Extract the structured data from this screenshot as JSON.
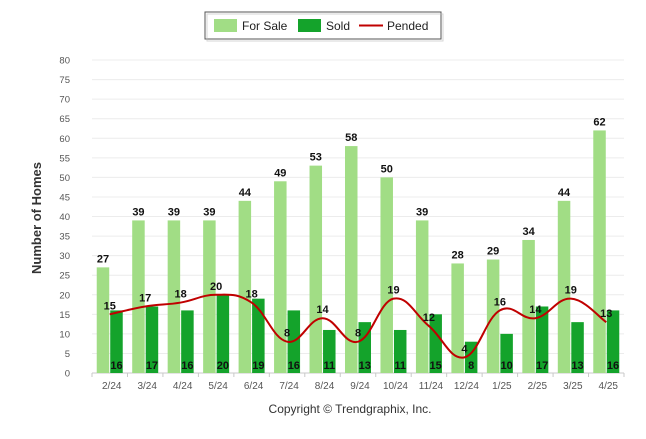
{
  "chart_data": {
    "type": "bar",
    "categories": [
      "2/24",
      "3/24",
      "4/24",
      "5/24",
      "6/24",
      "7/24",
      "8/24",
      "9/24",
      "10/24",
      "11/24",
      "12/24",
      "1/25",
      "2/25",
      "3/25",
      "4/25"
    ],
    "series": [
      {
        "name": "For Sale",
        "type": "bar",
        "color": "#a1dd85",
        "values": [
          27,
          39,
          39,
          39,
          44,
          49,
          53,
          58,
          50,
          39,
          28,
          29,
          34,
          44,
          62
        ]
      },
      {
        "name": "Sold",
        "type": "bar",
        "color": "#14a32b",
        "values": [
          16,
          17,
          16,
          20,
          19,
          16,
          11,
          13,
          11,
          15,
          8,
          10,
          17,
          13,
          16
        ]
      },
      {
        "name": "Pended",
        "type": "line",
        "color": "#c00000",
        "values": [
          15,
          17,
          18,
          20,
          18,
          8,
          14,
          8,
          19,
          12,
          4,
          16,
          14,
          19,
          13
        ]
      }
    ],
    "title": "",
    "xlabel": "",
    "ylabel": "Number of Homes",
    "ylim": [
      0,
      80
    ],
    "yticks": [
      0,
      5,
      10,
      15,
      20,
      25,
      30,
      35,
      40,
      45,
      50,
      55,
      60,
      65,
      70,
      75,
      80
    ],
    "grid": true,
    "legend": "top-center",
    "data_labels": true
  },
  "footer": {
    "copyright": "Copyright © Trendgraphix, Inc."
  }
}
